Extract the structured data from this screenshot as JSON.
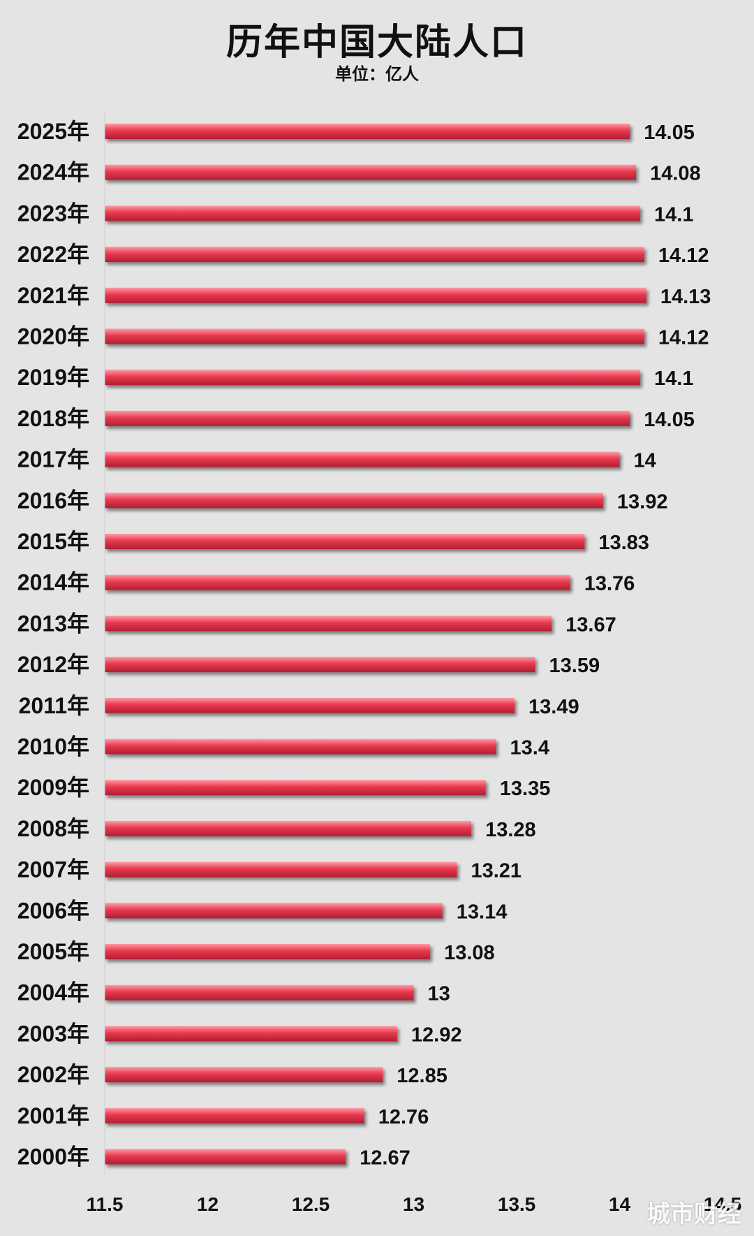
{
  "chart_data": {
    "type": "bar",
    "orientation": "horizontal",
    "title": "历年中国大陆人口",
    "subtitle": "单位：亿人",
    "categories": [
      "2025年",
      "2024年",
      "2023年",
      "2022年",
      "2021年",
      "2020年",
      "2019年",
      "2018年",
      "2017年",
      "2016年",
      "2015年",
      "2014年",
      "2013年",
      "2012年",
      "2011年",
      "2010年",
      "2009年",
      "2008年",
      "2007年",
      "2006年",
      "2005年",
      "2004年",
      "2003年",
      "2002年",
      "2001年",
      "2000年"
    ],
    "values": [
      14.05,
      14.08,
      14.1,
      14.12,
      14.13,
      14.12,
      14.1,
      14.05,
      14,
      13.92,
      13.83,
      13.76,
      13.67,
      13.59,
      13.49,
      13.4,
      13.35,
      13.28,
      13.21,
      13.14,
      13.08,
      13,
      12.92,
      12.85,
      12.76,
      12.67
    ],
    "value_labels": [
      "14.05",
      "14.08",
      "14.1",
      "14.12",
      "14.13",
      "14.12",
      "14.1",
      "14.05",
      "14",
      "13.92",
      "13.83",
      "13.76",
      "13.67",
      "13.59",
      "13.49",
      "13.4",
      "13.35",
      "13.28",
      "13.21",
      "13.14",
      "13.08",
      "13",
      "12.92",
      "12.85",
      "12.76",
      "12.67"
    ],
    "xlim": [
      11.5,
      14.5
    ],
    "xticks": [
      "11.5",
      "12",
      "12.5",
      "13",
      "13.5",
      "14",
      "14.5"
    ],
    "grid": false,
    "bar_color": "#e8394e",
    "bar_highlight": "#ff9aa6",
    "bar_shadow": "#b01f33"
  },
  "watermark": "城市财经"
}
